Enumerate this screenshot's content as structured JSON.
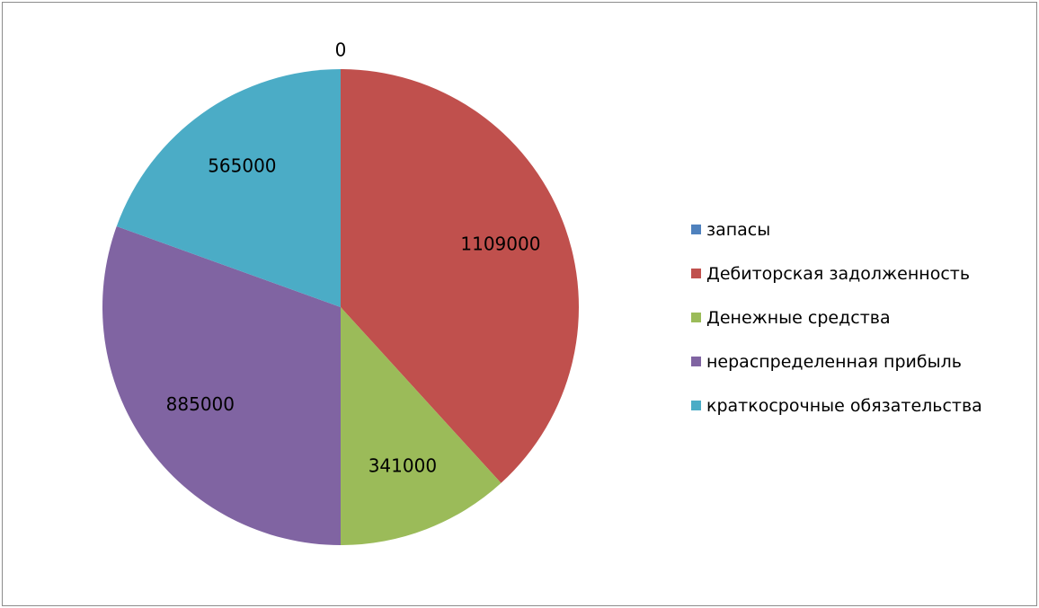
{
  "chart_data": {
    "type": "pie",
    "title": "",
    "categories": [
      "запасы",
      "Дебиторская задолженность",
      "Денежные средства",
      "нераспределенная прибыль",
      "краткосрочные обязательства"
    ],
    "values": [
      0,
      1109000,
      341000,
      885000,
      565000
    ],
    "data_labels": [
      "0",
      "1109000",
      "341000",
      "885000",
      "565000"
    ],
    "colors": [
      "#4f81bd",
      "#c0504d",
      "#9bbb59",
      "#8064a2",
      "#4bacc6"
    ],
    "start_angle": "12 o'clock",
    "direction": "clockwise",
    "legend_position": "right"
  }
}
